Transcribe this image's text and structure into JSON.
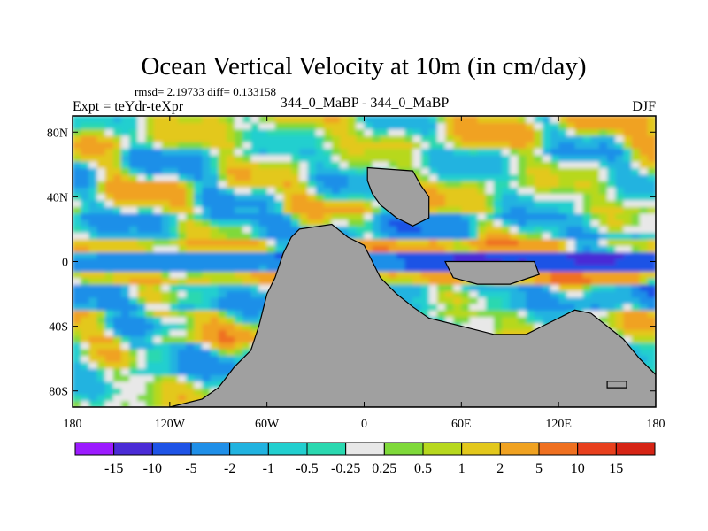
{
  "chart_data": {
    "type": "heatmap",
    "title": "Ocean Vertical Velocity at 10m (in cm/day)",
    "stats_line": "rmsd= 2.19733 diff= 0.133158",
    "left_label": "Expt = teYdr-teXpr",
    "center_label": "344_0_MaBP - 344_0_MaBP",
    "right_label": "DJF",
    "x_axis": {
      "range": [
        -180,
        180
      ],
      "ticks": [
        -180,
        -120,
        -60,
        0,
        60,
        120,
        180
      ],
      "tick_labels": [
        "180",
        "120W",
        "60W",
        "0",
        "60E",
        "120E",
        "180"
      ]
    },
    "y_axis": {
      "range": [
        -90,
        90
      ],
      "ticks": [
        80,
        40,
        0,
        -40,
        -80
      ],
      "tick_labels": [
        "80N",
        "40N",
        "0",
        "40S",
        "80S"
      ]
    },
    "colorbar": {
      "labels": [
        "-15",
        "-10",
        "-5",
        "-2",
        "-1",
        "-0.5",
        "-0.25",
        "0.25",
        "0.5",
        "1",
        "2",
        "5",
        "10",
        "15"
      ],
      "colors": [
        "#9c1bff",
        "#4a2bd6",
        "#1e53e6",
        "#1f8fe8",
        "#21b3e0",
        "#22cfcf",
        "#2ad8b0",
        "#e8e8e8",
        "#7fd93a",
        "#b7d81e",
        "#e3c81c",
        "#f0a221",
        "#ef7020",
        "#e8401d",
        "#d62415"
      ]
    },
    "land_color": "#a0a0a0",
    "land_masses": [
      {
        "name": "pangea-west",
        "outline": [
          [
            -40,
            20
          ],
          [
            -20,
            23
          ],
          [
            -10,
            15
          ],
          [
            0,
            10
          ],
          [
            5,
            0
          ],
          [
            10,
            -10
          ],
          [
            20,
            -20
          ],
          [
            30,
            -28
          ],
          [
            40,
            -35
          ],
          [
            60,
            -40
          ],
          [
            80,
            -45
          ],
          [
            100,
            -45
          ],
          [
            110,
            -40
          ],
          [
            120,
            -35
          ],
          [
            130,
            -30
          ],
          [
            140,
            -32
          ],
          [
            150,
            -40
          ],
          [
            160,
            -48
          ],
          [
            170,
            -60
          ],
          [
            180,
            -70
          ],
          [
            180,
            -90
          ],
          [
            -120,
            -90
          ],
          [
            -100,
            -85
          ],
          [
            -90,
            -78
          ],
          [
            -80,
            -65
          ],
          [
            -70,
            -55
          ],
          [
            -65,
            -40
          ],
          [
            -60,
            -20
          ],
          [
            -55,
            -10
          ],
          [
            -50,
            5
          ],
          [
            -45,
            15
          ]
        ]
      },
      {
        "name": "north-block",
        "outline": [
          [
            2,
            58
          ],
          [
            30,
            56
          ],
          [
            35,
            47
          ],
          [
            40,
            40
          ],
          [
            40,
            27
          ],
          [
            30,
            22
          ],
          [
            20,
            27
          ],
          [
            10,
            35
          ],
          [
            5,
            42
          ],
          [
            2,
            50
          ]
        ]
      },
      {
        "name": "east-bar",
        "outline": [
          [
            50,
            0
          ],
          [
            105,
            0
          ],
          [
            108,
            -8
          ],
          [
            90,
            -14
          ],
          [
            70,
            -14
          ],
          [
            55,
            -10
          ]
        ]
      },
      {
        "name": "se-islet",
        "outline": [
          [
            150,
            -74
          ],
          [
            162,
            -74
          ],
          [
            162,
            -78
          ],
          [
            150,
            -78
          ]
        ]
      }
    ],
    "zonal_bands": [
      {
        "lat": [
          70,
          90
        ],
        "value": 0.7
      },
      {
        "lat": [
          50,
          70
        ],
        "value": -0.4
      },
      {
        "lat": [
          30,
          50
        ],
        "value": 0.3
      },
      {
        "lat": [
          15,
          30
        ],
        "value": -1.2
      },
      {
        "lat": [
          5,
          15
        ],
        "value": 1.5
      },
      {
        "lat": [
          -5,
          5
        ],
        "value": -6
      },
      {
        "lat": [
          -15,
          -5
        ],
        "value": 2
      },
      {
        "lat": [
          -30,
          -15
        ],
        "value": -1.5
      },
      {
        "lat": [
          -50,
          -30
        ],
        "value": 0.5
      },
      {
        "lat": [
          -70,
          -50
        ],
        "value": -0.8
      },
      {
        "lat": [
          -90,
          -70
        ],
        "value": 0.3
      }
    ]
  }
}
